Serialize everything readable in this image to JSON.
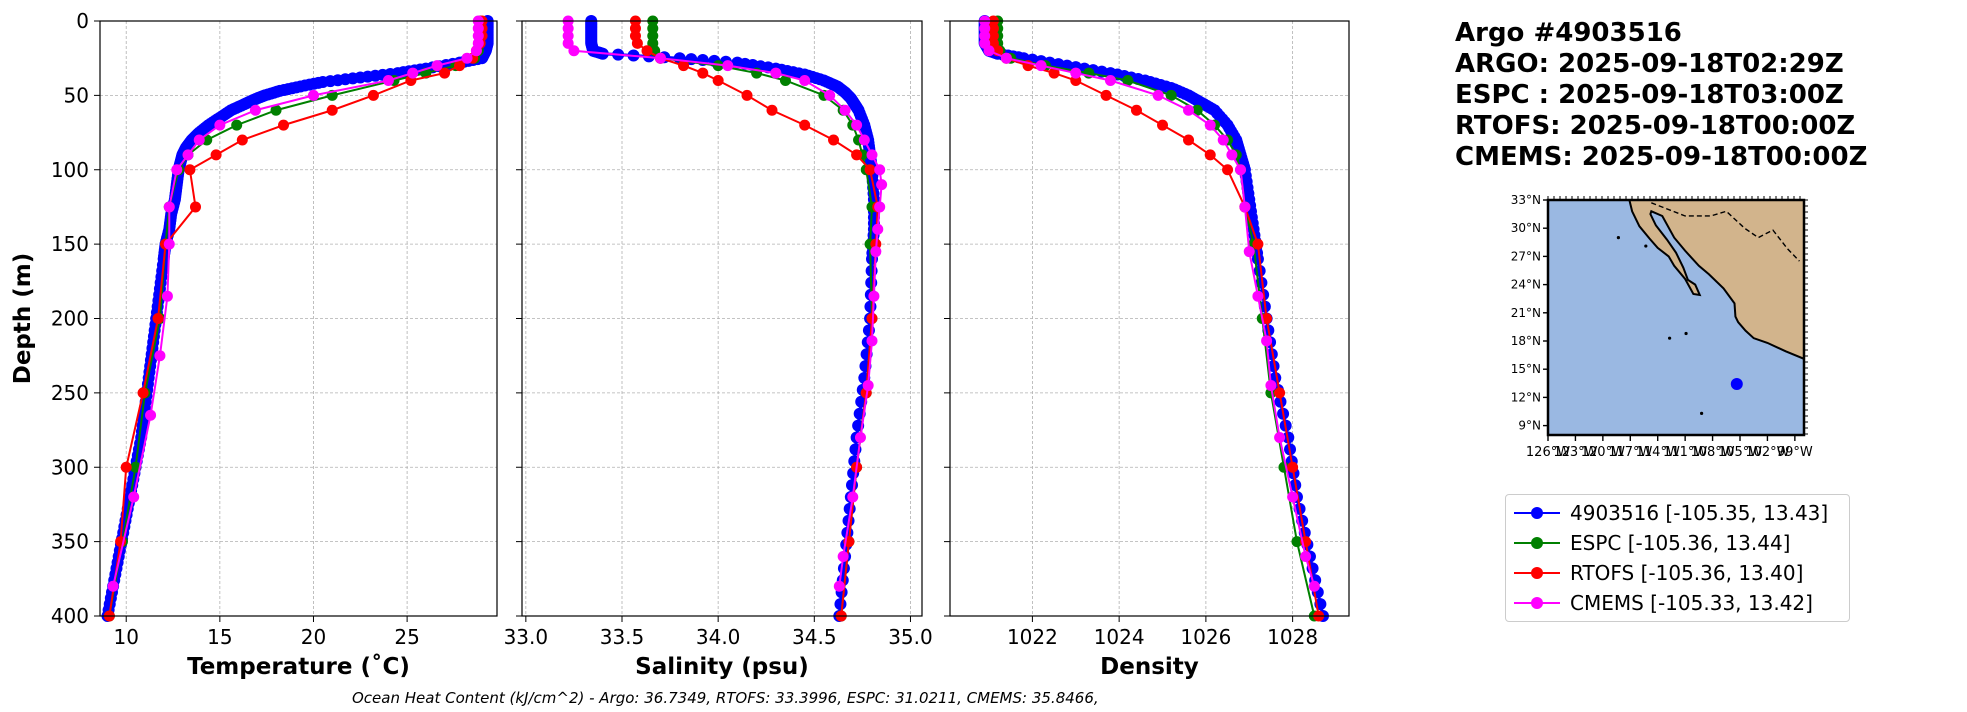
{
  "info": {
    "lines": [
      "Argo #4903516",
      "ARGO: 2025-09-18T02:29Z",
      "ESPC : 2025-09-18T03:00Z",
      "RTOFS: 2025-09-18T00:00Z",
      "CMEMS: 2025-09-18T00:00Z"
    ]
  },
  "ohc_text": "Ocean Heat Content (kJ/cm^2) - Argo: 36.7349,  RTOFS: 33.3996,  ESPC: 31.0211,  CMEMS: 35.8466,",
  "legend": [
    {
      "label": "4903516 [-105.35, 13.43]",
      "color": "#0000ff"
    },
    {
      "label": "ESPC [-105.36, 13.44]",
      "color": "#008000"
    },
    {
      "label": "RTOFS [-105.36, 13.40]",
      "color": "#ff0000"
    },
    {
      "label": "CMEMS [-105.33, 13.42]",
      "color": "#ff00ff"
    }
  ],
  "map": {
    "lat_ticks": [
      "33°N",
      "30°N",
      "27°N",
      "24°N",
      "21°N",
      "18°N",
      "15°N",
      "12°N",
      "9°N"
    ],
    "lat_values": [
      33,
      30,
      27,
      24,
      21,
      18,
      15,
      12,
      9
    ],
    "lon_ticks": [
      "126°W",
      "123°W",
      "120°W",
      "117°W",
      "114°W",
      "111°W",
      "108°W",
      "105°W",
      "102°W",
      "99°W"
    ],
    "lon_values": [
      -126,
      -123,
      -120,
      -117,
      -114,
      -111,
      -108,
      -105,
      -102,
      -99
    ],
    "lon_range": [
      -126,
      -98
    ],
    "lat_range": [
      8,
      33
    ],
    "ocean_color": "#9ab8e2",
    "land_color": "#d2b48c",
    "float_position": [
      -105.35,
      13.43
    ]
  },
  "chart_data": [
    {
      "type": "line",
      "xlabel": "Temperature (˚C)",
      "ylabel": "Depth (m)",
      "xlim": [
        8.6,
        29.8
      ],
      "ylim": [
        400,
        0
      ],
      "xticks": [
        10,
        15,
        20,
        25
      ],
      "yticks": [
        0,
        50,
        100,
        150,
        200,
        250,
        300,
        350,
        400
      ],
      "grid": true,
      "series": [
        {
          "name": "4903516",
          "color": "#0000ff",
          "dense": true,
          "depth": [
            0,
            5,
            10,
            15,
            20,
            25,
            28,
            32,
            35,
            38,
            41,
            44,
            47,
            50,
            53,
            56,
            60,
            65,
            70,
            75,
            80,
            85,
            90,
            95,
            100,
            110,
            120,
            130,
            140,
            150,
            160,
            180,
            200,
            220,
            240,
            260,
            280,
            300,
            320,
            340,
            360,
            380,
            400
          ],
          "values": [
            29.3,
            29.3,
            29.3,
            29.3,
            29.2,
            29.0,
            27.8,
            26.0,
            24.5,
            22.5,
            20.5,
            19.3,
            18.2,
            17.4,
            16.8,
            16.3,
            15.6,
            15.0,
            14.4,
            13.9,
            13.5,
            13.2,
            13.0,
            12.9,
            12.8,
            12.7,
            12.6,
            12.4,
            12.3,
            12.1,
            12.0,
            11.8,
            11.6,
            11.4,
            11.2,
            11.0,
            10.8,
            10.5,
            10.2,
            9.9,
            9.6,
            9.3,
            9.0
          ]
        },
        {
          "name": "ESPC",
          "color": "#008000",
          "dense": false,
          "depth": [
            0,
            5,
            10,
            15,
            20,
            25,
            30,
            35,
            40,
            50,
            60,
            70,
            80,
            90,
            100,
            125,
            150,
            200,
            250,
            300,
            350,
            400
          ],
          "values": [
            28.9,
            28.9,
            28.9,
            28.9,
            28.8,
            28.6,
            27.6,
            26.0,
            24.3,
            21.0,
            18.0,
            15.9,
            14.3,
            13.3,
            12.8,
            12.3,
            12.1,
            11.8,
            11.0,
            10.5,
            9.8,
            9.1
          ]
        },
        {
          "name": "RTOFS",
          "color": "#ff0000",
          "dense": false,
          "depth": [
            0,
            5,
            10,
            15,
            20,
            25,
            30,
            35,
            40,
            50,
            60,
            70,
            80,
            90,
            100,
            125,
            150,
            200,
            250,
            300,
            350,
            400
          ],
          "values": [
            29.0,
            29.0,
            29.0,
            28.9,
            28.7,
            28.5,
            27.8,
            27.0,
            25.2,
            23.2,
            21.0,
            18.4,
            16.2,
            14.8,
            13.4,
            13.7,
            12.1,
            11.7,
            10.9,
            10.0,
            9.7,
            9.1
          ]
        },
        {
          "name": "CMEMS",
          "color": "#ff00ff",
          "dense": false,
          "depth": [
            0,
            5,
            10,
            15,
            20,
            25,
            30,
            35,
            40,
            50,
            60,
            70,
            80,
            90,
            100,
            125,
            150,
            185,
            225,
            265,
            320,
            380
          ],
          "values": [
            28.8,
            28.8,
            28.8,
            28.8,
            28.7,
            28.2,
            26.6,
            25.3,
            24.0,
            20.0,
            16.9,
            15.0,
            13.9,
            13.3,
            12.7,
            12.3,
            12.3,
            12.2,
            11.8,
            11.3,
            10.4,
            9.3
          ]
        }
      ]
    },
    {
      "type": "line",
      "xlabel": "Salinity (psu)",
      "ylabel": "",
      "xlim": [
        32.98,
        35.06
      ],
      "ylim": [
        400,
        0
      ],
      "xticks": [
        33.0,
        33.5,
        34.0,
        34.5,
        35.0
      ],
      "yticks": [
        0,
        50,
        100,
        150,
        200,
        250,
        300,
        350,
        400
      ],
      "grid": true,
      "series": [
        {
          "name": "4903516",
          "color": "#0000ff",
          "dense": true,
          "depth": [
            0,
            5,
            10,
            15,
            20,
            22,
            25,
            28,
            32,
            36,
            40,
            44,
            48,
            52,
            56,
            60,
            70,
            80,
            90,
            100,
            120,
            140,
            160,
            200,
            240,
            280,
            320,
            360,
            400
          ],
          "values": [
            33.34,
            33.34,
            33.34,
            33.34,
            33.35,
            33.4,
            33.8,
            34.1,
            34.3,
            34.45,
            34.55,
            34.62,
            34.66,
            34.69,
            34.71,
            34.73,
            34.76,
            34.78,
            34.79,
            34.8,
            34.81,
            34.81,
            34.8,
            34.79,
            34.76,
            34.72,
            34.69,
            34.66,
            34.63
          ]
        },
        {
          "name": "ESPC",
          "color": "#008000",
          "dense": false,
          "depth": [
            0,
            5,
            10,
            15,
            20,
            25,
            30,
            35,
            40,
            50,
            60,
            70,
            80,
            90,
            100,
            125,
            150,
            200,
            250,
            300,
            350,
            400
          ],
          "values": [
            33.66,
            33.66,
            33.66,
            33.66,
            33.67,
            33.7,
            34.0,
            34.2,
            34.35,
            34.55,
            34.65,
            34.7,
            34.73,
            34.75,
            34.77,
            34.8,
            34.79,
            34.8,
            34.77,
            34.72,
            34.68,
            34.64
          ]
        },
        {
          "name": "RTOFS",
          "color": "#ff0000",
          "dense": false,
          "depth": [
            0,
            5,
            10,
            15,
            20,
            25,
            30,
            35,
            40,
            50,
            60,
            70,
            80,
            90,
            100,
            125,
            150,
            200,
            250,
            300,
            350,
            400
          ],
          "values": [
            33.57,
            33.57,
            33.57,
            33.58,
            33.63,
            33.7,
            33.82,
            33.92,
            34.0,
            34.15,
            34.28,
            34.45,
            34.6,
            34.72,
            34.79,
            34.83,
            34.82,
            34.8,
            34.77,
            34.72,
            34.68,
            34.64
          ]
        },
        {
          "name": "CMEMS",
          "color": "#ff00ff",
          "dense": false,
          "depth": [
            0,
            5,
            10,
            15,
            20,
            25,
            30,
            35,
            40,
            50,
            60,
            70,
            80,
            90,
            100,
            110,
            125,
            140,
            155,
            185,
            215,
            245,
            280,
            320,
            360,
            380
          ],
          "values": [
            33.22,
            33.22,
            33.22,
            33.22,
            33.25,
            33.7,
            34.05,
            34.3,
            34.45,
            34.58,
            34.66,
            34.72,
            34.76,
            34.8,
            34.84,
            34.85,
            34.84,
            34.83,
            34.82,
            34.81,
            34.8,
            34.78,
            34.74,
            34.7,
            34.65,
            34.63
          ]
        }
      ]
    },
    {
      "type": "line",
      "xlabel": "Density",
      "ylabel": "",
      "xlim": [
        1020.1,
        1029.3
      ],
      "ylim": [
        400,
        0
      ],
      "xticks": [
        1022,
        1024,
        1026,
        1028
      ],
      "yticks": [
        0,
        50,
        100,
        150,
        200,
        250,
        300,
        350,
        400
      ],
      "grid": true,
      "series": [
        {
          "name": "4903516",
          "color": "#0000ff",
          "dense": true,
          "depth": [
            0,
            5,
            10,
            15,
            20,
            22,
            25,
            30,
            35,
            40,
            45,
            50,
            55,
            60,
            70,
            80,
            90,
            100,
            120,
            140,
            160,
            200,
            240,
            280,
            320,
            360,
            400
          ],
          "values": [
            1020.9,
            1020.9,
            1020.9,
            1020.9,
            1021.0,
            1021.2,
            1021.8,
            1022.8,
            1023.8,
            1024.6,
            1025.2,
            1025.6,
            1025.9,
            1026.2,
            1026.5,
            1026.7,
            1026.8,
            1026.9,
            1027.0,
            1027.1,
            1027.2,
            1027.4,
            1027.6,
            1027.9,
            1028.1,
            1028.4,
            1028.7
          ]
        },
        {
          "name": "ESPC",
          "color": "#008000",
          "dense": false,
          "depth": [
            0,
            5,
            10,
            15,
            20,
            25,
            30,
            35,
            40,
            50,
            60,
            70,
            80,
            90,
            100,
            125,
            150,
            200,
            250,
            300,
            350,
            400
          ],
          "values": [
            1021.2,
            1021.2,
            1021.2,
            1021.2,
            1021.25,
            1021.5,
            1022.3,
            1023.3,
            1024.2,
            1025.2,
            1025.8,
            1026.2,
            1026.5,
            1026.7,
            1026.8,
            1026.9,
            1027.1,
            1027.3,
            1027.5,
            1027.8,
            1028.1,
            1028.5
          ]
        },
        {
          "name": "RTOFS",
          "color": "#ff0000",
          "dense": false,
          "depth": [
            0,
            5,
            10,
            15,
            20,
            25,
            30,
            35,
            40,
            50,
            60,
            70,
            80,
            90,
            100,
            125,
            150,
            200,
            250,
            300,
            350,
            400
          ],
          "values": [
            1021.1,
            1021.1,
            1021.1,
            1021.1,
            1021.2,
            1021.4,
            1021.9,
            1022.5,
            1023.0,
            1023.7,
            1024.4,
            1025.0,
            1025.6,
            1026.1,
            1026.5,
            1026.9,
            1027.2,
            1027.4,
            1027.7,
            1028.0,
            1028.3,
            1028.6
          ]
        },
        {
          "name": "CMEMS",
          "color": "#ff00ff",
          "dense": false,
          "depth": [
            0,
            5,
            10,
            15,
            20,
            25,
            30,
            35,
            40,
            50,
            60,
            70,
            80,
            90,
            100,
            125,
            155,
            185,
            215,
            245,
            280,
            320,
            360,
            380
          ],
          "values": [
            1020.9,
            1020.9,
            1020.9,
            1020.9,
            1021.0,
            1021.4,
            1022.2,
            1023.0,
            1023.8,
            1024.9,
            1025.6,
            1026.1,
            1026.4,
            1026.6,
            1026.8,
            1026.9,
            1027.0,
            1027.2,
            1027.4,
            1027.5,
            1027.7,
            1028.0,
            1028.3,
            1028.5
          ]
        }
      ]
    }
  ]
}
